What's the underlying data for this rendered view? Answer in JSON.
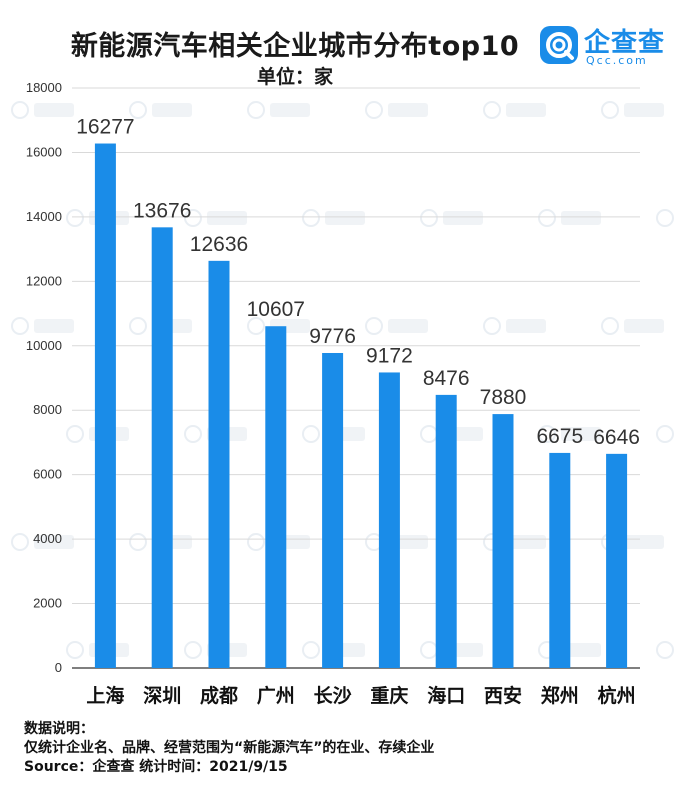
{
  "header": {
    "title": "新能源汽车相关企业城市分布top10",
    "unit": "单位：家"
  },
  "logo": {
    "text": "企查查",
    "sub": "Qcc.com",
    "icon": "qcc-logo-icon"
  },
  "colors": {
    "bar": "#1a8ce8",
    "grid": "#d9d9d9",
    "axis": "#333333"
  },
  "notes": {
    "heading": "数据说明：",
    "line1": "仅统计企业名、品牌、经营范围为“新能源汽车”的在业、存续企业",
    "line2": "Source：企查查   统计时间：2021/9/15"
  },
  "chart_data": {
    "type": "bar",
    "title": "新能源汽车相关企业城市分布top10",
    "subtitle": "单位：家",
    "categories": [
      "上海",
      "深圳",
      "成都",
      "广州",
      "长沙",
      "重庆",
      "海口",
      "西安",
      "郑州",
      "杭州"
    ],
    "values": [
      16277,
      13676,
      12636,
      10607,
      9776,
      9172,
      8476,
      7880,
      6675,
      6646
    ],
    "ylim": [
      0,
      18000
    ],
    "yticks": [
      0,
      2000,
      4000,
      6000,
      8000,
      10000,
      12000,
      14000,
      16000,
      18000
    ],
    "grid": true,
    "data_labels": true
  }
}
